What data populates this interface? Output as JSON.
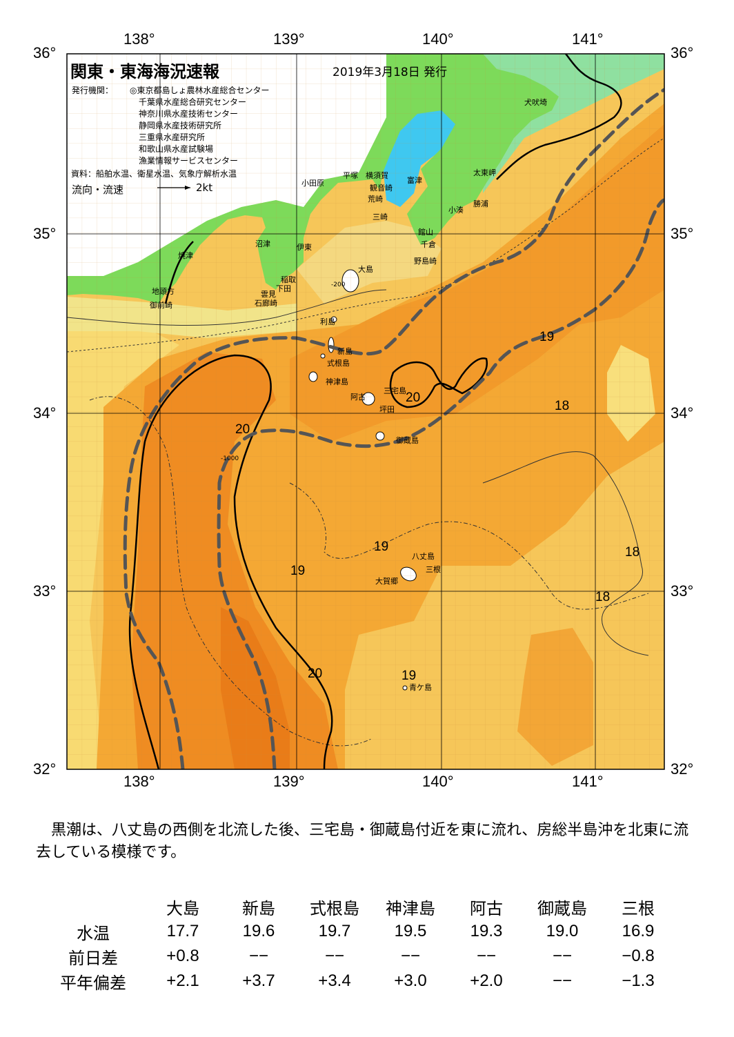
{
  "map": {
    "title": "関東・東海海況速報",
    "issue_date": "2019年3月18日 発行",
    "issuers_label": "発行機関：",
    "issuers": [
      "◎東京都島しょ農林水産総合センター",
      "千葉県水産総合研究センター",
      "神奈川県水産技術センター",
      "静岡県水産技術研究所",
      "三重県水産研究所",
      "和歌山県水産試験場",
      "漁業情報サービスセンター"
    ],
    "sources": "資料：船舶水温、衛星水温、気象庁解析水温",
    "legend_flow": "流向・流速",
    "legend_speed": "2kt",
    "lon_ticks": [
      "138°",
      "139°",
      "140°",
      "141°"
    ],
    "lat_ticks": [
      "36°",
      "35°",
      "34°",
      "33°",
      "32°"
    ],
    "place_names": [
      "犬吠埼",
      "太東岬",
      "勝浦",
      "小湊",
      "館山",
      "千倉",
      "野島崎",
      "富津",
      "横須賀",
      "観音崎",
      "荒崎",
      "三崎",
      "平塚",
      "小田原",
      "沼津",
      "伊東",
      "焼津",
      "地頭方",
      "御前崎",
      "稲取",
      "下田",
      "雲見",
      "石廊崎",
      "大島",
      "利島",
      "新島",
      "式根島",
      "神津島",
      "阿古",
      "三宅島",
      "坪田",
      "御蔵島",
      "八丈島",
      "三根",
      "大賀郷",
      "青ケ島"
    ],
    "isotherm_labels": [
      "19",
      "20",
      "18",
      "20",
      "19",
      "19",
      "19",
      "18",
      "18",
      "20",
      "19"
    ],
    "isobath_labels": [
      "-200",
      "-1000"
    ],
    "colors": {
      "land_green": "#7dda5a",
      "bay_blue": "#3ec6ef",
      "warm_orange": "#f5a030",
      "core_orange": "#ee8a1e",
      "cool_yellow": "#f7d060",
      "kuroshio_axis": "#555555"
    }
  },
  "summary": "黒潮は、八丈島の西側を北流した後、三宅島・御蔵島付近を東に流れ、房総半島沖を北東に流去している模様です。",
  "table": {
    "columns": [
      "大島",
      "新島",
      "式根島",
      "神津島",
      "阿古",
      "御蔵島",
      "三根"
    ],
    "rows": [
      {
        "label": "水温",
        "values": [
          "17.7",
          "19.6",
          "19.7",
          "19.5",
          "19.3",
          "19.0",
          "16.9"
        ]
      },
      {
        "label": "前日差",
        "values": [
          "+0.8",
          "−−",
          "−−",
          "−−",
          "−−",
          "−−",
          "−0.8"
        ]
      },
      {
        "label": "平年偏差",
        "values": [
          "+2.1",
          "+3.7",
          "+3.4",
          "+3.0",
          "+2.0",
          "−−",
          "−1.3"
        ]
      }
    ]
  }
}
